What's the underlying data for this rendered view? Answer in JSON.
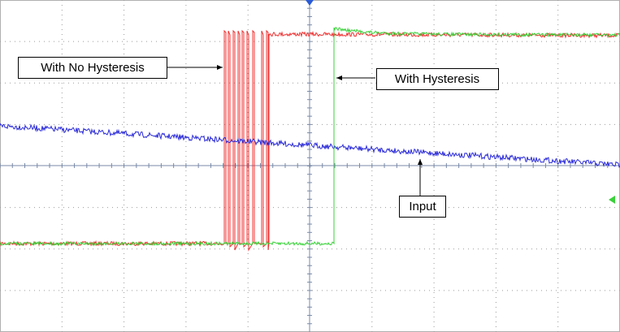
{
  "labels": {
    "no_hysteresis": "With No Hysteresis",
    "hysteresis": "With Hysteresis",
    "input": "Input"
  }
}
